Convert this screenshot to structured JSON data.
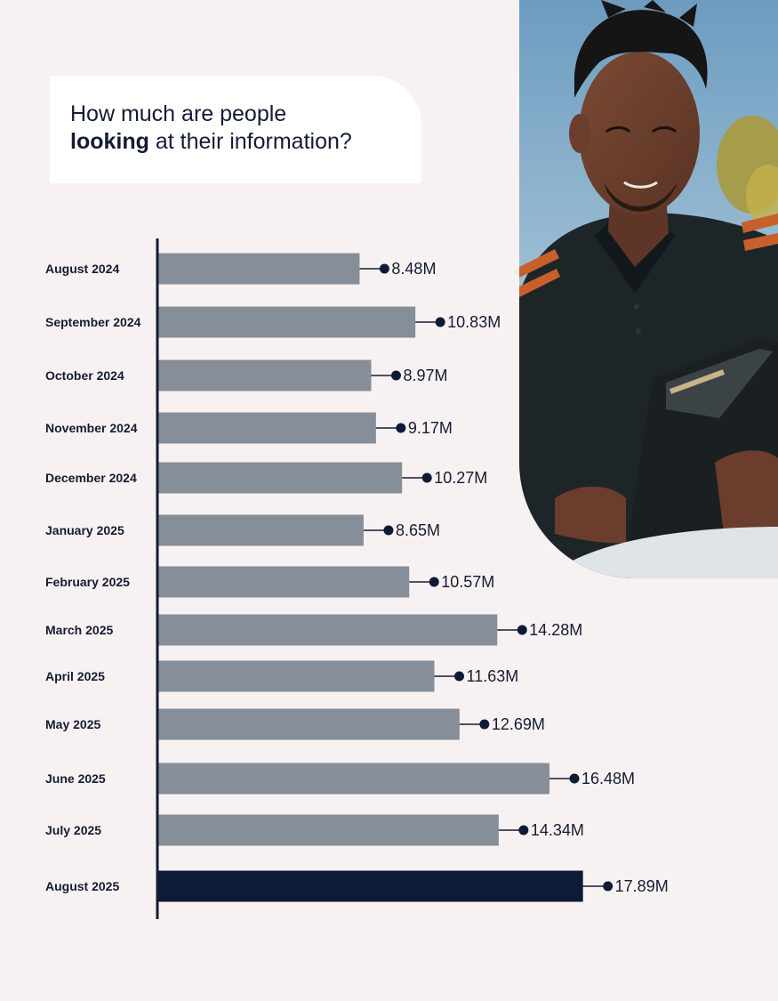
{
  "colors": {
    "background": "#f8f1f1",
    "bar": "#868e9a",
    "bar_highlight": "#0e1b36",
    "axis": "#141c33",
    "text": "#141c33"
  },
  "title": {
    "line1": "How much are people",
    "bold": "looking",
    "rest": " at their information?"
  },
  "chart_data": {
    "type": "bar",
    "orientation": "horizontal",
    "title": "How much are people looking at their information?",
    "categories": [
      "August 2024",
      "September 2024",
      "October 2024",
      "November 2024",
      "December 2024",
      "January 2025",
      "February 2025",
      "March 2025",
      "April 2025",
      "May 2025",
      "June 2025",
      "July 2025",
      "August 2025"
    ],
    "values": [
      8.48,
      10.83,
      8.97,
      9.17,
      10.27,
      8.65,
      10.57,
      14.28,
      11.63,
      12.69,
      16.48,
      14.34,
      17.89
    ],
    "value_labels": [
      "8.48M",
      "10.83M",
      "8.97M",
      "9.17M",
      "10.27M",
      "8.65M",
      "10.57M",
      "14.28M",
      "11.63M",
      "12.69M",
      "16.48M",
      "14.34M",
      "17.89M"
    ],
    "highlight_index": 12,
    "unit": "M",
    "xlim": [
      0,
      20
    ]
  }
}
